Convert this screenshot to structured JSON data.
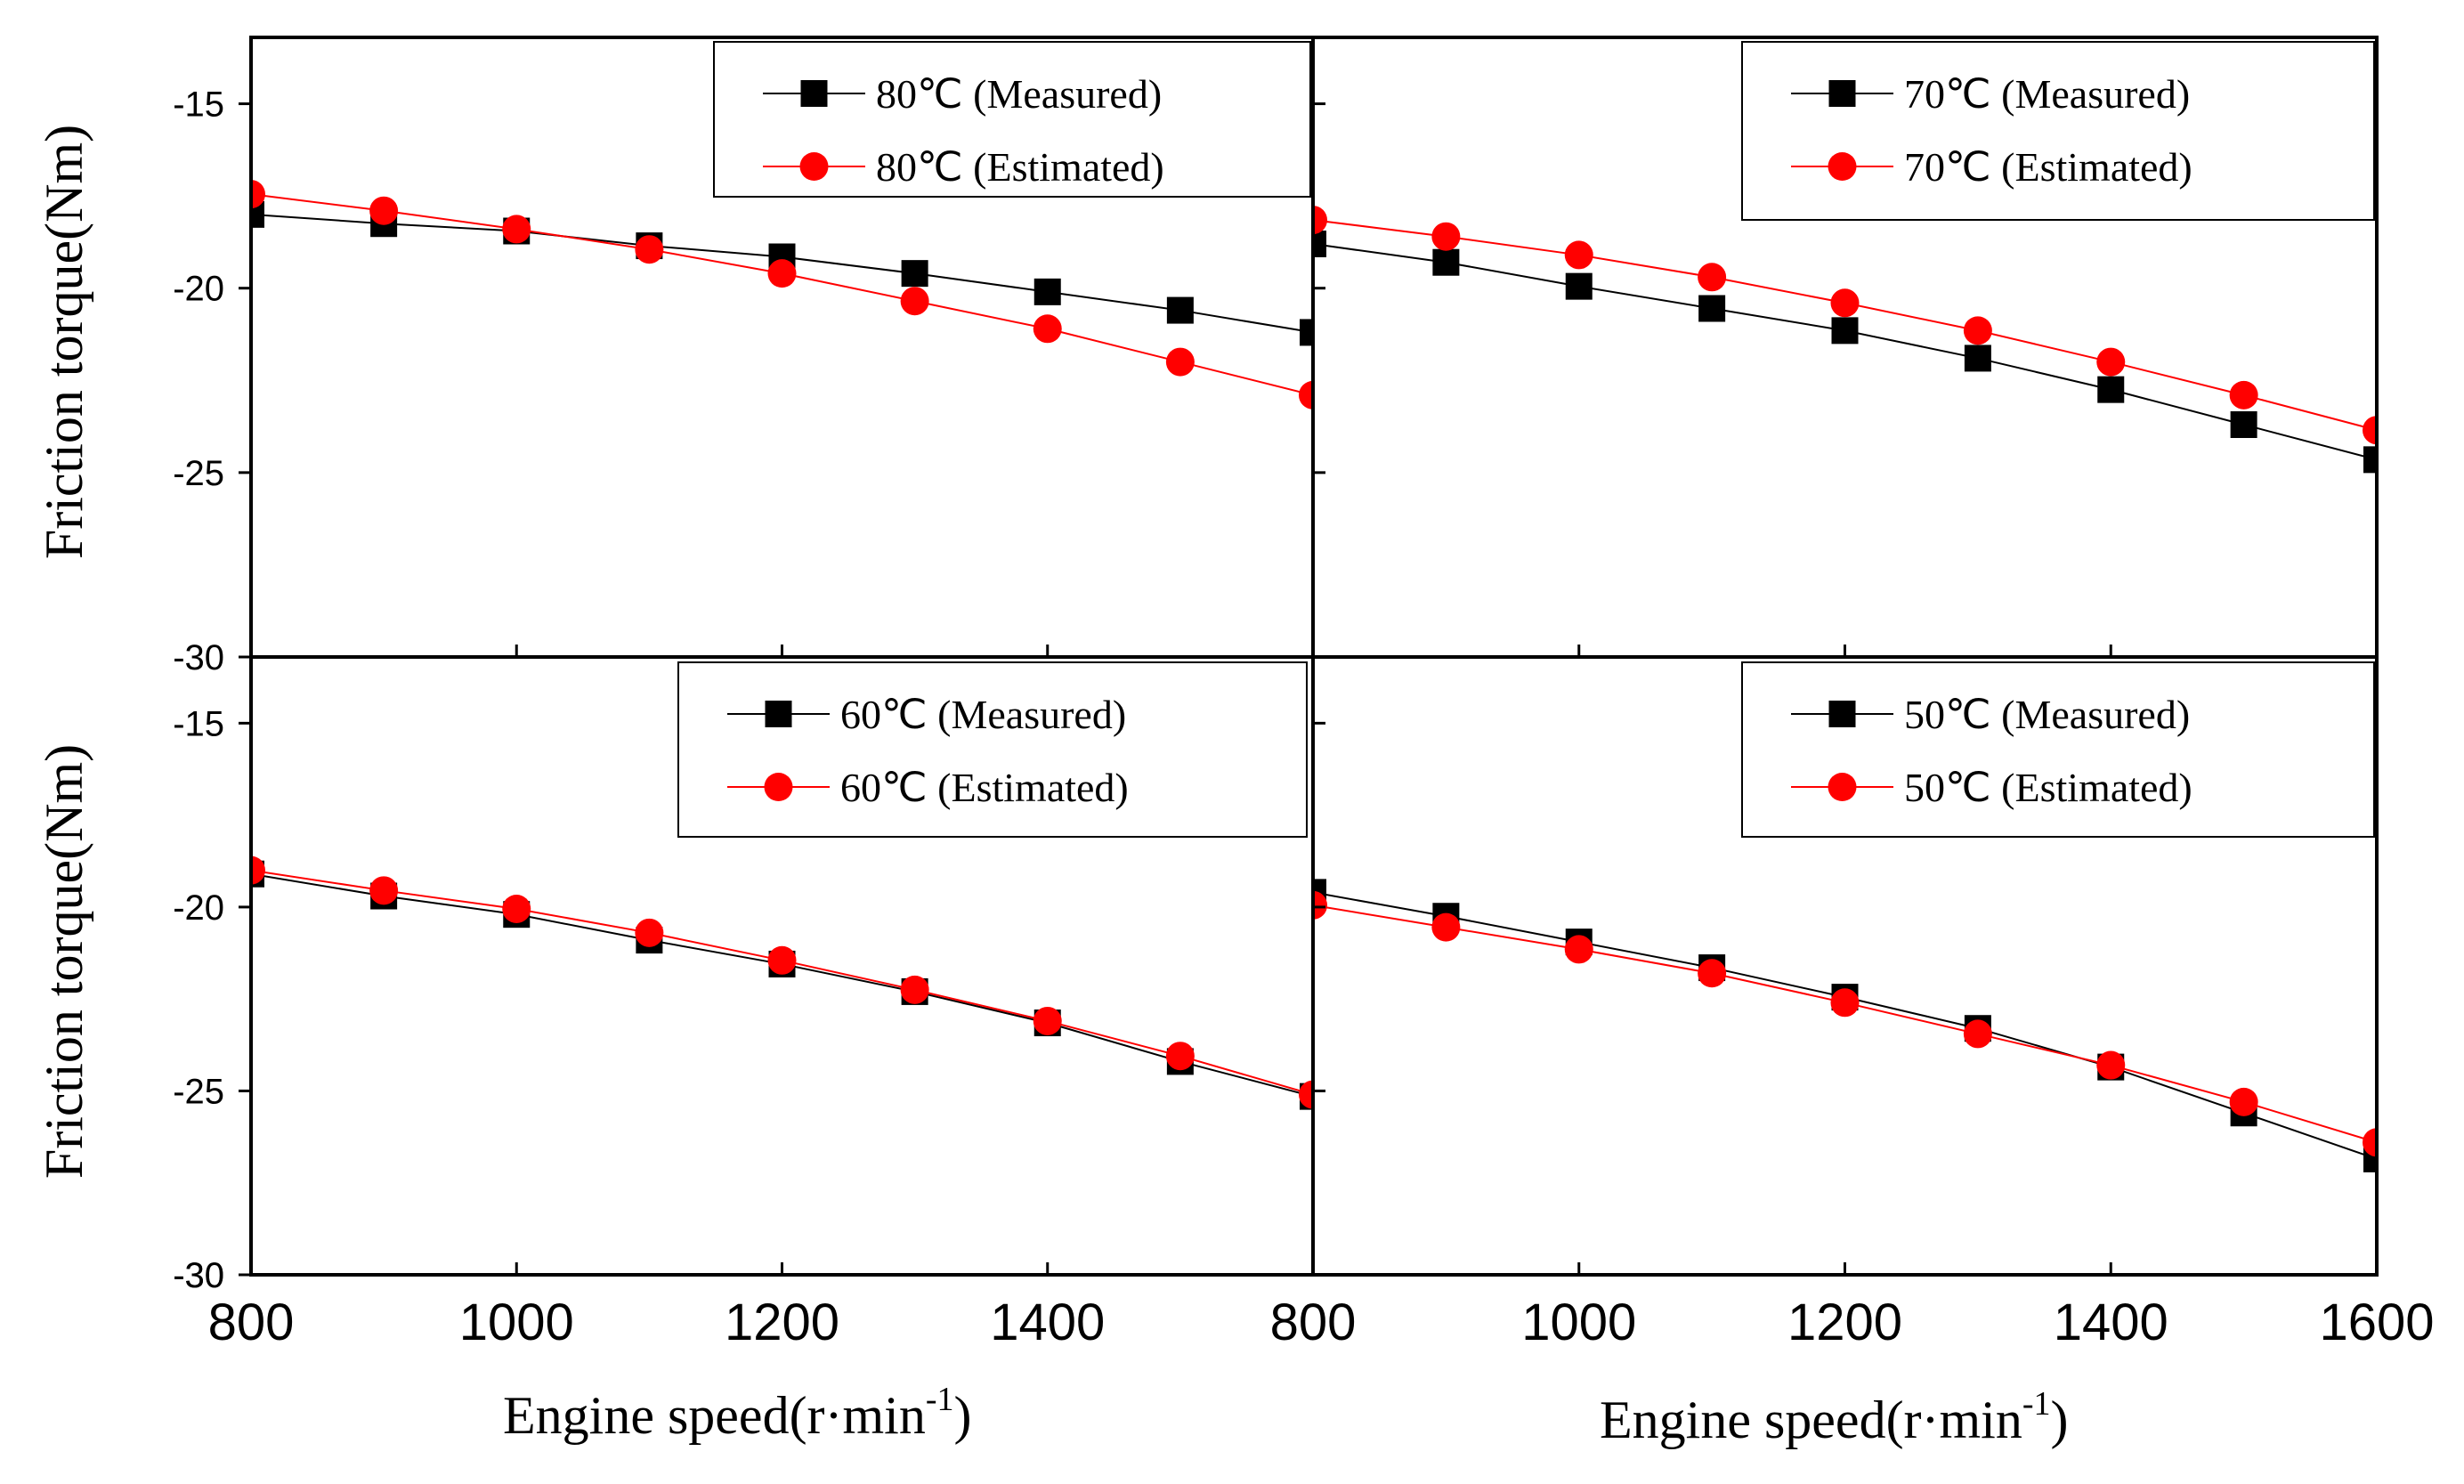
{
  "chart_data": {
    "type": "line",
    "layout": "2x2 grid with shared axes",
    "x_axis": {
      "label_main": "Engine speed(r·min",
      "label_sup": "-1",
      "label_close": ")",
      "ticks_left": [
        "800",
        "1000",
        "1200",
        "1400",
        "800"
      ],
      "ticks_right": [
        "1000",
        "1200",
        "1400",
        "1600"
      ],
      "range": [
        800,
        1600
      ]
    },
    "y_axis": {
      "label": "Friction torque(Nm)",
      "ticks": [
        "-15",
        "-20",
        "-25",
        "-30"
      ],
      "range": [
        -30,
        -13.2
      ]
    },
    "x": [
      800,
      900,
      1000,
      1100,
      1200,
      1300,
      1400,
      1500,
      1600
    ],
    "panels": [
      {
        "position": "top-left",
        "series": [
          {
            "name": "80℃ (Measured)",
            "color": "#000000",
            "marker": "square",
            "values": [
              -18.0,
              -18.25,
              -18.45,
              -18.85,
              -19.15,
              -19.6,
              -20.1,
              -20.6,
              -21.2
            ]
          },
          {
            "name": "80℃ (Estimated)",
            "color": "#ff0000",
            "marker": "circle",
            "values": [
              -17.45,
              -17.9,
              -18.4,
              -18.95,
              -19.6,
              -20.35,
              -21.1,
              -22.0,
              -22.9
            ]
          }
        ]
      },
      {
        "position": "top-right",
        "series": [
          {
            "name": "70℃ (Measured)",
            "color": "#000000",
            "marker": "square",
            "values": [
              -18.8,
              -19.3,
              -19.95,
              -20.55,
              -21.15,
              -21.9,
              -22.75,
              -23.7,
              -24.65
            ]
          },
          {
            "name": "70℃ (Estimated)",
            "color": "#ff0000",
            "marker": "circle",
            "values": [
              -18.15,
              -18.6,
              -19.1,
              -19.7,
              -20.4,
              -21.15,
              -22.0,
              -22.9,
              -23.85
            ]
          }
        ]
      },
      {
        "position": "bottom-left",
        "series": [
          {
            "name": "60℃ (Measured)",
            "color": "#000000",
            "marker": "square",
            "values": [
              -19.1,
              -19.7,
              -20.2,
              -20.9,
              -21.55,
              -22.3,
              -23.15,
              -24.2,
              -25.15
            ]
          },
          {
            "name": "60℃ (Estimated)",
            "color": "#ff0000",
            "marker": "circle",
            "values": [
              -19.0,
              -19.55,
              -20.05,
              -20.7,
              -21.45,
              -22.25,
              -23.1,
              -24.05,
              -25.1
            ]
          }
        ]
      },
      {
        "position": "bottom-right",
        "series": [
          {
            "name": "50℃ (Measured)",
            "color": "#000000",
            "marker": "square",
            "values": [
              -19.6,
              -20.25,
              -20.95,
              -21.65,
              -22.45,
              -23.3,
              -24.35,
              -25.6,
              -26.85
            ]
          },
          {
            "name": "50℃ (Estimated)",
            "color": "#ff0000",
            "marker": "circle",
            "values": [
              -19.95,
              -20.55,
              -21.15,
              -21.8,
              -22.6,
              -23.45,
              -24.3,
              -25.3,
              -26.4
            ]
          }
        ]
      }
    ]
  }
}
